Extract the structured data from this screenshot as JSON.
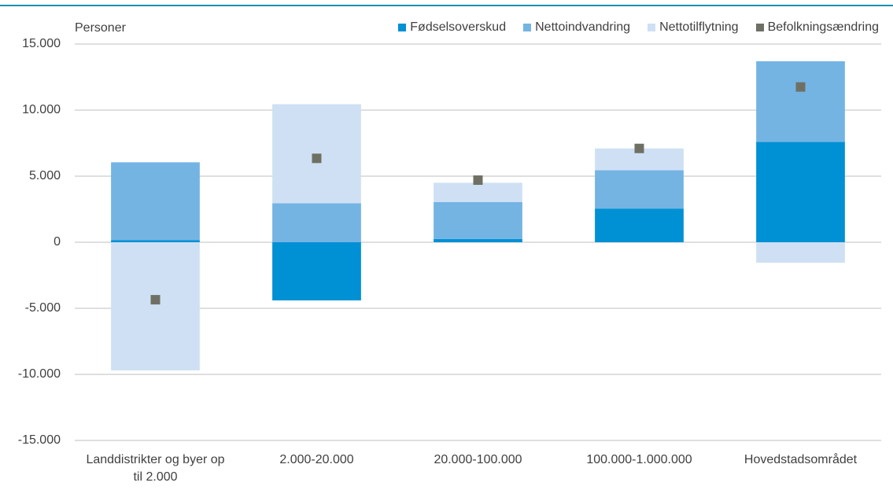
{
  "chart_data": {
    "type": "bar",
    "stacked": true,
    "y_label": "Personer",
    "categories": [
      "Landdistrikter og byer op til 2.000",
      "2.000-20.000",
      "20.000-100.000",
      "100.000-1.000.000",
      "Hovedstadsområdet"
    ],
    "series": [
      {
        "name": "Fødselsoverskud",
        "type": "bar",
        "color": "#0090d4",
        "values": [
          150,
          -4400,
          250,
          2550,
          7600
        ]
      },
      {
        "name": "Nettoindvandring",
        "type": "bar",
        "color": "#74b4e3",
        "values": [
          5900,
          2950,
          2800,
          2900,
          6100
        ]
      },
      {
        "name": "Nettotilflytning",
        "type": "bar",
        "color": "#cfe0f4",
        "values": [
          -9700,
          7500,
          1450,
          1650,
          -1550
        ]
      },
      {
        "name": "Befolkningsændring",
        "type": "scatter",
        "color": "#6f7064",
        "values": [
          -4350,
          6350,
          4700,
          7100,
          11750
        ]
      }
    ],
    "ylim": [
      -15000,
      15000
    ],
    "yticks": [
      {
        "value": -15000,
        "label": "-15.000"
      },
      {
        "value": -10000,
        "label": "-10.000"
      },
      {
        "value": -5000,
        "label": "-5.000"
      },
      0,
      {
        "value": 5000,
        "label": "5.000"
      },
      {
        "value": 10000,
        "label": "10.000"
      },
      {
        "value": 15000,
        "label": "15.000"
      }
    ],
    "grid": true
  }
}
